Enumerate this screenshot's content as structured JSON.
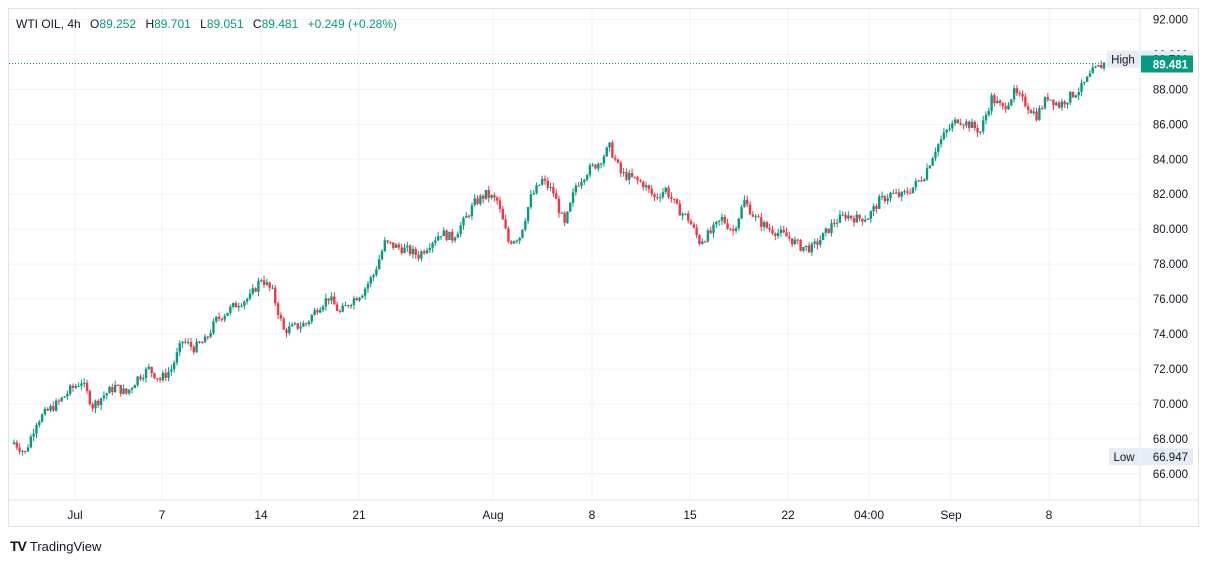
{
  "legend": {
    "symbol": "WTI OIL",
    "interval": "4h",
    "open_label": "O",
    "open": "89.252",
    "high_label": "H",
    "high": "89.701",
    "low_label": "L",
    "low": "89.051",
    "close_label": "C",
    "close": "89.481",
    "change": "+0.249 (+0.28%)"
  },
  "brand": {
    "name": "TradingView",
    "logo": "TV"
  },
  "colors": {
    "up": "#089981",
    "down": "#f23645",
    "grid": "#f0f3fa",
    "text": "#131722"
  },
  "chart_data": {
    "type": "candlestick",
    "y_range": [
      64.5,
      92.6
    ],
    "y_ticks": [
      "92.000",
      "90.000",
      "88.000",
      "86.000",
      "84.000",
      "82.000",
      "80.000",
      "78.000",
      "76.000",
      "74.000",
      "72.000",
      "70.000",
      "68.000",
      "66.000"
    ],
    "x_ticks": [
      "Jul",
      "7",
      "14",
      "21",
      "Aug",
      "8",
      "15",
      "22",
      "04:00",
      "Sep",
      "8"
    ],
    "high_marker": {
      "label": "High",
      "value": "89.701"
    },
    "low_marker": {
      "label": "Low",
      "value": "66.947"
    },
    "last_price": "89.481",
    "close_series": [
      67.8,
      67.2,
      69.0,
      69.6,
      70.1,
      70.8,
      71.3,
      69.9,
      70.5,
      71.0,
      70.6,
      71.5,
      72.0,
      71.4,
      72.0,
      73.6,
      73.2,
      73.6,
      74.8,
      75.3,
      75.8,
      76.1,
      77.2,
      76.4,
      74.2,
      74.4,
      74.6,
      75.5,
      76.1,
      75.2,
      75.9,
      76.4,
      77.4,
      79.2,
      79.0,
      78.8,
      78.5,
      79.2,
      79.8,
      79.5,
      80.4,
      81.5,
      82.0,
      81.6,
      79.3,
      79.6,
      81.8,
      82.8,
      82.1,
      80.2,
      82.5,
      83.3,
      83.8,
      84.7,
      83.2,
      82.9,
      82.6,
      81.8,
      82.3,
      81.2,
      80.6,
      79.3,
      79.8,
      80.6,
      79.9,
      81.6,
      80.6,
      80.1,
      79.8,
      79.5,
      79.0,
      78.9,
      79.6,
      80.4,
      80.8,
      80.6,
      80.7,
      81.6,
      82.0,
      81.9,
      82.4,
      83.1,
      84.6,
      85.6,
      86.3,
      86.0,
      85.6,
      87.5,
      86.9,
      87.8,
      87.2,
      86.5,
      87.6,
      87.1,
      87.6,
      88.1,
      89.0,
      89.481
    ]
  }
}
